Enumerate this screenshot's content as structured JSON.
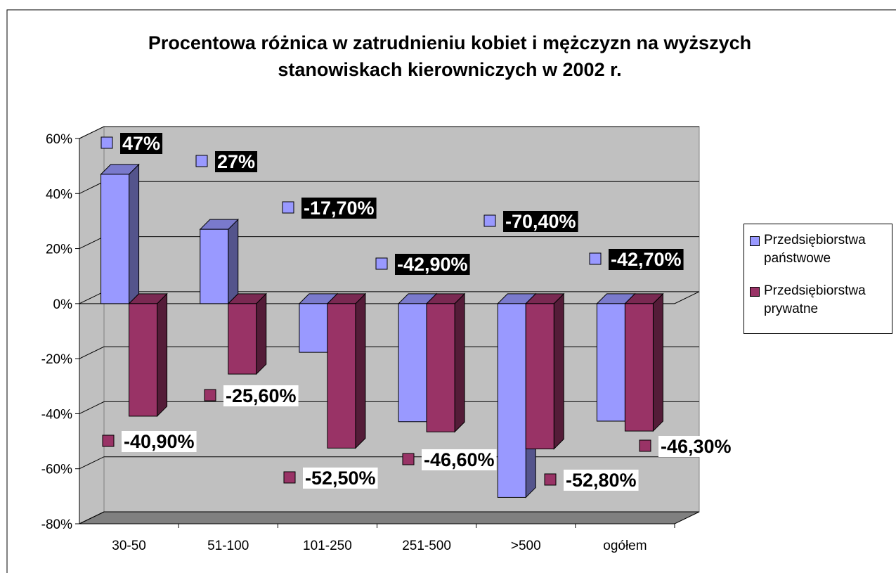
{
  "chart_data": {
    "type": "bar3d",
    "title": "Procentowa różnica w zatrudnieniu kobiet i mężczyzn na wyższych stanowiskach kierowniczych w 2002 r.",
    "categories": [
      "30-50",
      "51-100",
      "101-250",
      "251-500",
      ">500",
      "ogółem"
    ],
    "series": [
      {
        "name": "Przedsiębiorstwa państwowe",
        "color": "#9999ff",
        "values": [
          47,
          27,
          -17.7,
          -42.9,
          -70.4,
          -42.7
        ],
        "value_labels": [
          "47%",
          "27%",
          "-17,70%",
          "-42,90%",
          "-70,40%",
          "-42,70%"
        ]
      },
      {
        "name": "Przedsiębiorstwa prywatne",
        "color": "#993366",
        "values": [
          -40.9,
          -25.6,
          -52.5,
          -46.6,
          -52.8,
          -46.3
        ],
        "value_labels": [
          "-40,90%",
          "-25,60%",
          "-52,50%",
          "-46,60%",
          "-52,80%",
          "-46,30%"
        ]
      }
    ],
    "ylim": [
      -80,
      60
    ],
    "yticks": [
      {
        "value": -80,
        "label": "-80%"
      },
      {
        "value": -60,
        "label": "-60%"
      },
      {
        "value": -40,
        "label": "-40%"
      },
      {
        "value": -20,
        "label": "-20%"
      },
      {
        "value": 0,
        "label": "0%"
      },
      {
        "value": 20,
        "label": "20%"
      },
      {
        "value": 40,
        "label": "40%"
      },
      {
        "value": 60,
        "label": "60%"
      }
    ],
    "grid": true,
    "legend": "right"
  }
}
